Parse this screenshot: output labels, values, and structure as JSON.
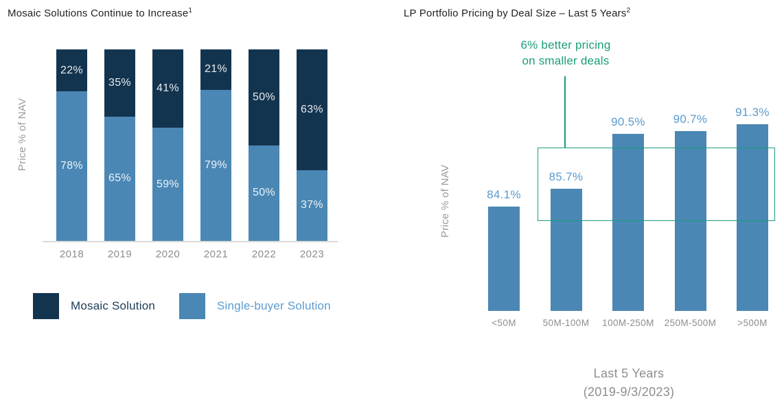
{
  "left_chart": {
    "title": "Mosaic Solutions Continue to Increase",
    "title_superscript": "1",
    "y_axis_label": "Price % of NAV",
    "legend": [
      {
        "label": "Mosaic Solution",
        "swatch_color": "#13344f",
        "text_color": "#1d3b58"
      },
      {
        "label": "Single-buyer Solution",
        "swatch_color": "#4a87b4",
        "text_color": "#5b9bce"
      }
    ]
  },
  "right_chart": {
    "title": "LP Portfolio Pricing by Deal Size – Last 5 Years",
    "title_superscript": "2",
    "y_axis_label": "Price % of NAV",
    "annotation_lines": [
      "6% better pricing",
      "on smaller deals"
    ],
    "annotation_color": "#1a9c7c",
    "x_axis_caption_lines": [
      "Last 5 Years",
      "(2019-9/3/2023)"
    ]
  },
  "chart_data": [
    {
      "type": "bar",
      "subtype": "stacked-percentage",
      "title": "Mosaic Solutions Continue to Increase¹",
      "ylabel": "Price % of NAV",
      "xlabel": "",
      "ylim": [
        0,
        100
      ],
      "grid": false,
      "legend_position": "bottom",
      "categories": [
        "2018",
        "2019",
        "2020",
        "2021",
        "2022",
        "2023"
      ],
      "series": [
        {
          "name": "Mosaic Solution",
          "color": "#13344f",
          "values": [
            22,
            35,
            41,
            21,
            50,
            63
          ]
        },
        {
          "name": "Single-buyer Solution",
          "color": "#4a87b4",
          "values": [
            78,
            65,
            59,
            79,
            50,
            37
          ]
        }
      ],
      "value_suffix": "%"
    },
    {
      "type": "bar",
      "title": "LP Portfolio Pricing by Deal Size – Last 5 Years²",
      "ylabel": "Price % of NAV",
      "xlabel": "Last 5 Years (2019-9/3/2023)",
      "grid": false,
      "categories": [
        "<50M",
        "50M-100M",
        "100M-250M",
        "250M-500M",
        ">500M"
      ],
      "values": [
        84.1,
        85.7,
        90.5,
        90.7,
        91.3
      ],
      "value_labels": [
        "84.1%",
        "85.7%",
        "90.5%",
        "90.7%",
        "91.3%"
      ],
      "y_axis_baseline_value": 75,
      "bar_color": "#4a87b4",
      "value_label_color": "#5b9bce",
      "annotation": "6% better pricing on smaller deals",
      "annotation_color": "#1a9c7c",
      "annotation_highlight": "green outlined box spanning the 50M-100M through >500M bars"
    }
  ]
}
